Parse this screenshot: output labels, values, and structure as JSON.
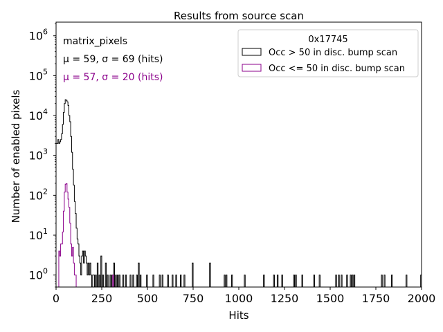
{
  "chart_data": {
    "type": "histogram",
    "title": "Results from source scan",
    "xlabel": "Hits",
    "ylabel": "Number of enabled pixels",
    "xlim": [
      0,
      2000
    ],
    "ylim": [
      0.5,
      2200000
    ],
    "yscale": "log",
    "x_ticks": [
      0,
      250,
      500,
      750,
      1000,
      1250,
      1500,
      1750,
      2000
    ],
    "x_tick_labels": [
      "0",
      "250",
      "500",
      "750",
      "1000",
      "1250",
      "1500",
      "1750",
      "2000"
    ],
    "y_ticks": [
      1,
      10,
      100,
      1000,
      10000,
      100000,
      1000000
    ],
    "y_tick_bases": [
      "10",
      "10",
      "10",
      "10",
      "10",
      "10",
      "10"
    ],
    "y_tick_exponents": [
      "0",
      "1",
      "2",
      "3",
      "4",
      "5",
      "6"
    ],
    "annotations": [
      {
        "text": "matrix_pixels",
        "color": "#000000"
      },
      {
        "text": "μ = 59, σ = 69 (hits)",
        "color": "#000000"
      },
      {
        "text": "μ = 57, σ = 20 (hits)",
        "color": "#8b008b"
      }
    ],
    "legend": {
      "title": "0x17745",
      "position": "top-right",
      "entries": [
        {
          "label": "Occ > 50 in disc. bump scan",
          "color": "#000000"
        },
        {
          "label": "Occ <= 50 in disc. bump scan",
          "color": "#8b008b"
        }
      ]
    },
    "series": [
      {
        "name": "Occ > 50 in disc. bump scan",
        "color": "#000000",
        "bins": [
          [
            0,
            5,
            2000
          ],
          [
            5,
            10,
            2000
          ],
          [
            10,
            15,
            2500
          ],
          [
            15,
            20,
            2000
          ],
          [
            20,
            25,
            2200
          ],
          [
            25,
            30,
            2500
          ],
          [
            30,
            35,
            3500
          ],
          [
            35,
            40,
            6000
          ],
          [
            40,
            45,
            12000
          ],
          [
            45,
            50,
            20000
          ],
          [
            50,
            55,
            25000
          ],
          [
            55,
            60,
            24000
          ],
          [
            60,
            65,
            22000
          ],
          [
            65,
            70,
            18000
          ],
          [
            70,
            75,
            10000
          ],
          [
            75,
            80,
            7000
          ],
          [
            80,
            85,
            3000
          ],
          [
            85,
            90,
            1200
          ],
          [
            90,
            95,
            450
          ],
          [
            95,
            100,
            180
          ],
          [
            100,
            105,
            70
          ],
          [
            105,
            110,
            35
          ],
          [
            110,
            115,
            15
          ],
          [
            115,
            120,
            8
          ],
          [
            120,
            125,
            6
          ],
          [
            125,
            130,
            3
          ],
          [
            130,
            135,
            2
          ],
          [
            135,
            140,
            1
          ],
          [
            140,
            145,
            3
          ],
          [
            145,
            150,
            4
          ],
          [
            150,
            155,
            2
          ],
          [
            155,
            160,
            4
          ],
          [
            160,
            165,
            3
          ],
          [
            165,
            170,
            2
          ],
          [
            170,
            175,
            1
          ],
          [
            175,
            180,
            2
          ],
          [
            180,
            185,
            1
          ],
          [
            185,
            190,
            2
          ],
          [
            190,
            195,
            1
          ],
          [
            200,
            205,
            1
          ],
          [
            205,
            210,
            1
          ],
          [
            215,
            220,
            1
          ],
          [
            225,
            230,
            2
          ],
          [
            235,
            240,
            1
          ],
          [
            245,
            250,
            3
          ],
          [
            255,
            260,
            1
          ],
          [
            270,
            275,
            2
          ],
          [
            280,
            285,
            1
          ],
          [
            295,
            300,
            1
          ],
          [
            305,
            310,
            1
          ],
          [
            315,
            320,
            2
          ],
          [
            325,
            330,
            1
          ],
          [
            335,
            340,
            1
          ],
          [
            345,
            350,
            1
          ],
          [
            365,
            370,
            1
          ],
          [
            380,
            385,
            1
          ],
          [
            405,
            410,
            1
          ],
          [
            420,
            425,
            1
          ],
          [
            440,
            445,
            1
          ],
          [
            450,
            455,
            2
          ],
          [
            460,
            465,
            1
          ],
          [
            495,
            500,
            1
          ],
          [
            530,
            535,
            1
          ],
          [
            565,
            570,
            1
          ],
          [
            580,
            585,
            1
          ],
          [
            610,
            615,
            1
          ],
          [
            635,
            640,
            1
          ],
          [
            655,
            660,
            1
          ],
          [
            680,
            685,
            1
          ],
          [
            700,
            705,
            1
          ],
          [
            745,
            750,
            2
          ],
          [
            840,
            845,
            2
          ],
          [
            920,
            925,
            1
          ],
          [
            930,
            935,
            1
          ],
          [
            960,
            965,
            1
          ],
          [
            1030,
            1035,
            1
          ],
          [
            1135,
            1140,
            1
          ],
          [
            1190,
            1195,
            1
          ],
          [
            1210,
            1215,
            1
          ],
          [
            1235,
            1240,
            1
          ],
          [
            1300,
            1305,
            1
          ],
          [
            1310,
            1315,
            1
          ],
          [
            1345,
            1350,
            1
          ],
          [
            1410,
            1415,
            1
          ],
          [
            1440,
            1445,
            1
          ],
          [
            1530,
            1535,
            1
          ],
          [
            1545,
            1550,
            1
          ],
          [
            1560,
            1565,
            1
          ],
          [
            1590,
            1595,
            1
          ],
          [
            1610,
            1615,
            1
          ],
          [
            1620,
            1625,
            1
          ],
          [
            1630,
            1635,
            1
          ],
          [
            1780,
            1785,
            1
          ],
          [
            1795,
            1800,
            1
          ],
          [
            1835,
            1840,
            1
          ],
          [
            1915,
            1920,
            1
          ],
          [
            1995,
            2000,
            1
          ]
        ]
      },
      {
        "name": "Occ <= 50 in disc. bump scan",
        "color": "#8b008b",
        "bins": [
          [
            15,
            20,
            4
          ],
          [
            20,
            25,
            3
          ],
          [
            25,
            30,
            6
          ],
          [
            30,
            35,
            6
          ],
          [
            35,
            40,
            12
          ],
          [
            40,
            45,
            40
          ],
          [
            45,
            50,
            120
          ],
          [
            50,
            55,
            190
          ],
          [
            55,
            60,
            195
          ],
          [
            60,
            65,
            120
          ],
          [
            65,
            70,
            80
          ],
          [
            70,
            75,
            50
          ],
          [
            75,
            80,
            20
          ],
          [
            80,
            85,
            6
          ],
          [
            85,
            90,
            3
          ],
          [
            90,
            95,
            5
          ],
          [
            95,
            100,
            2
          ],
          [
            100,
            105,
            1
          ],
          [
            105,
            110,
            1
          ],
          [
            310,
            315,
            1
          ]
        ]
      }
    ]
  }
}
